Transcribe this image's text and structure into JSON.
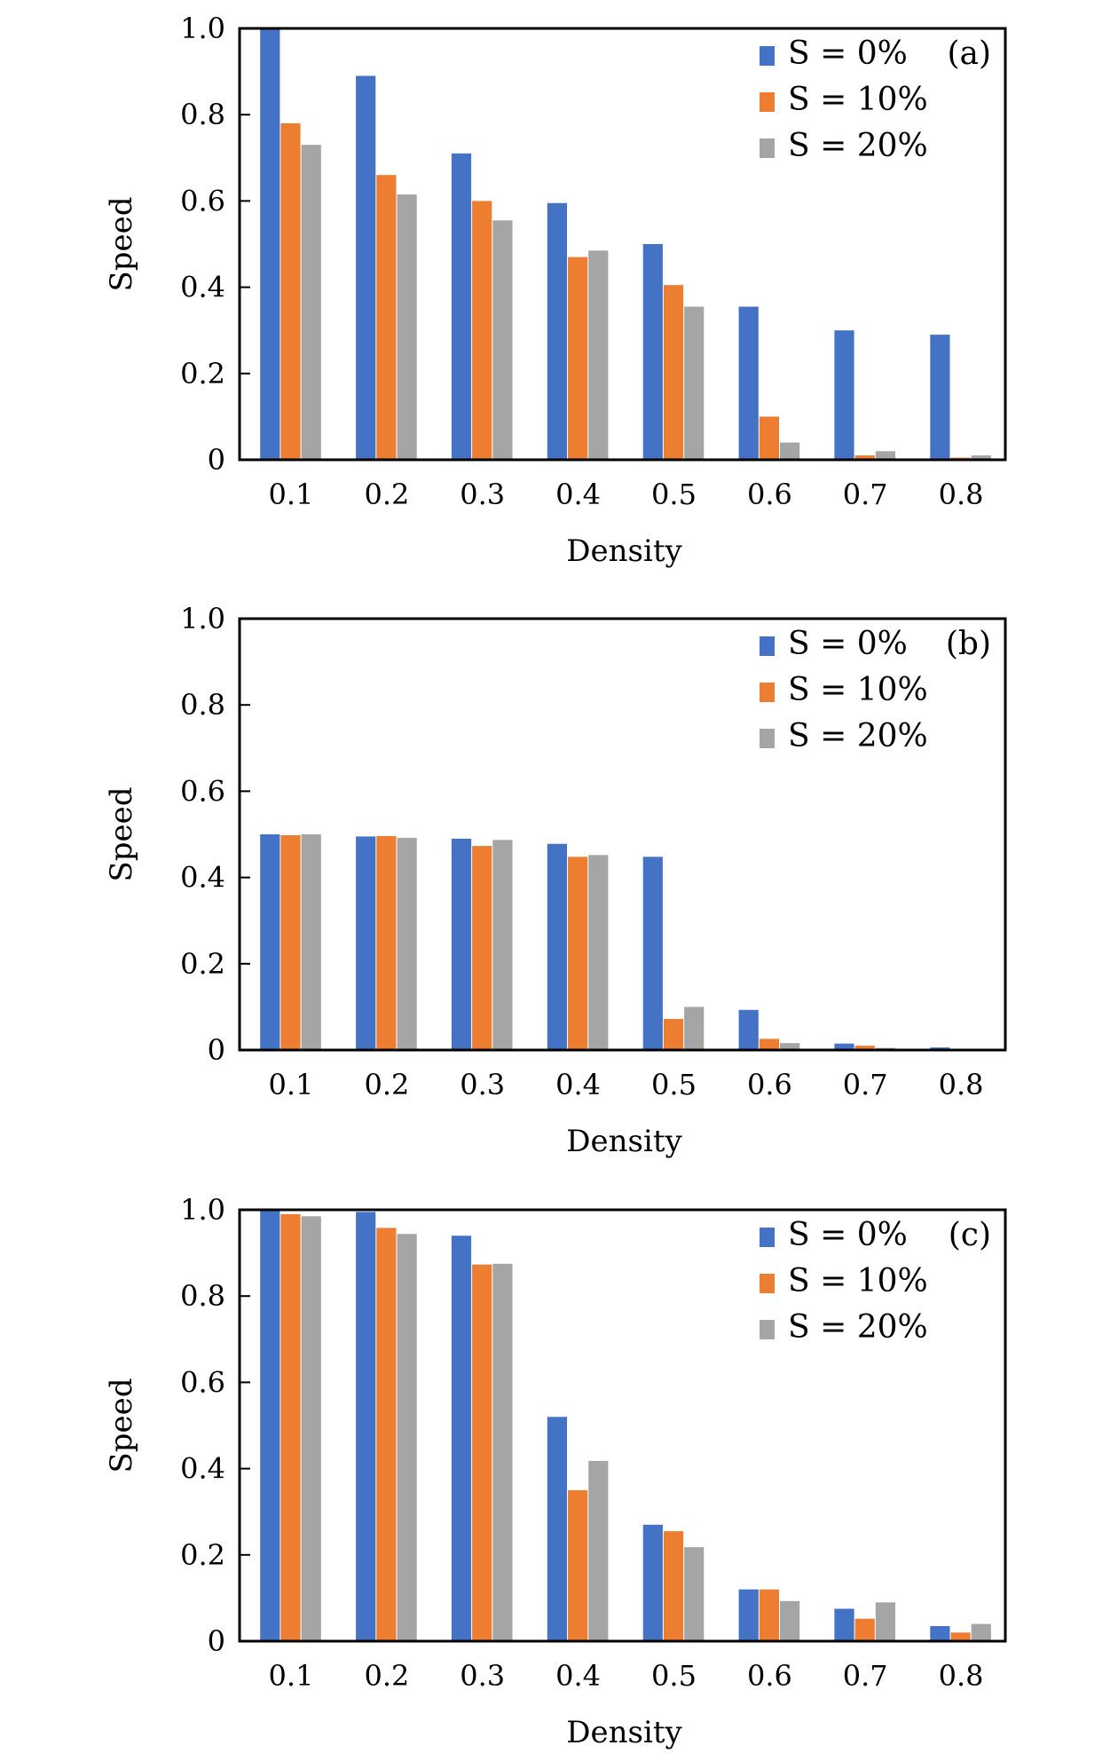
{
  "chart_data": [
    {
      "type": "bar",
      "panel_label": "(a)",
      "categories": [
        "0.1",
        "0.2",
        "0.3",
        "0.4",
        "0.5",
        "0.6",
        "0.7",
        "0.8"
      ],
      "series": [
        {
          "name": "S = 0%",
          "color": "#4472C4",
          "values": [
            1.0,
            0.89,
            0.71,
            0.595,
            0.5,
            0.355,
            0.3,
            0.29
          ]
        },
        {
          "name": "S = 10%",
          "color": "#ED7D31",
          "values": [
            0.78,
            0.66,
            0.6,
            0.47,
            0.405,
            0.1,
            0.01,
            0.005
          ]
        },
        {
          "name": "S = 20%",
          "color": "#A5A5A5",
          "values": [
            0.73,
            0.615,
            0.555,
            0.485,
            0.355,
            0.04,
            0.02,
            0.01
          ]
        }
      ],
      "xlabel": "Density",
      "ylabel": "Speed",
      "ylim": [
        0,
        1.0
      ],
      "yticks": [
        "0",
        "0.2",
        "0.4",
        "0.6",
        "0.8",
        "1.0"
      ],
      "legend": "top-right",
      "grid": false
    },
    {
      "type": "bar",
      "panel_label": "(b)",
      "categories": [
        "0.1",
        "0.2",
        "0.3",
        "0.4",
        "0.5",
        "0.6",
        "0.7",
        "0.8"
      ],
      "series": [
        {
          "name": "S = 0%",
          "color": "#4472C4",
          "values": [
            0.5,
            0.495,
            0.49,
            0.478,
            0.448,
            0.093,
            0.015,
            0.006
          ]
        },
        {
          "name": "S = 10%",
          "color": "#ED7D31",
          "values": [
            0.498,
            0.496,
            0.473,
            0.448,
            0.072,
            0.026,
            0.01,
            0.002
          ]
        },
        {
          "name": "S = 20%",
          "color": "#A5A5A5",
          "values": [
            0.5,
            0.492,
            0.487,
            0.452,
            0.1,
            0.016,
            0.005,
            0.001
          ]
        }
      ],
      "xlabel": "Density",
      "ylabel": "Speed",
      "ylim": [
        0,
        1.0
      ],
      "yticks": [
        "0",
        "0.2",
        "0.4",
        "0.6",
        "0.8",
        "1.0"
      ],
      "legend": "top-right",
      "grid": false
    },
    {
      "type": "bar",
      "panel_label": "(c)",
      "categories": [
        "0.1",
        "0.2",
        "0.3",
        "0.4",
        "0.5",
        "0.6",
        "0.7",
        "0.8"
      ],
      "series": [
        {
          "name": "S = 0%",
          "color": "#4472C4",
          "values": [
            1.0,
            0.995,
            0.94,
            0.52,
            0.27,
            0.12,
            0.075,
            0.035
          ]
        },
        {
          "name": "S = 10%",
          "color": "#ED7D31",
          "values": [
            0.99,
            0.958,
            0.873,
            0.35,
            0.255,
            0.12,
            0.052,
            0.02
          ]
        },
        {
          "name": "S = 20%",
          "color": "#A5A5A5",
          "values": [
            0.985,
            0.944,
            0.875,
            0.418,
            0.218,
            0.093,
            0.09,
            0.04
          ]
        }
      ],
      "xlabel": "Density",
      "ylabel": "Speed",
      "ylim": [
        0,
        1.0
      ],
      "yticks": [
        "0",
        "0.2",
        "0.4",
        "0.6",
        "0.8",
        "1.0"
      ],
      "legend": "top-right",
      "grid": false
    }
  ]
}
